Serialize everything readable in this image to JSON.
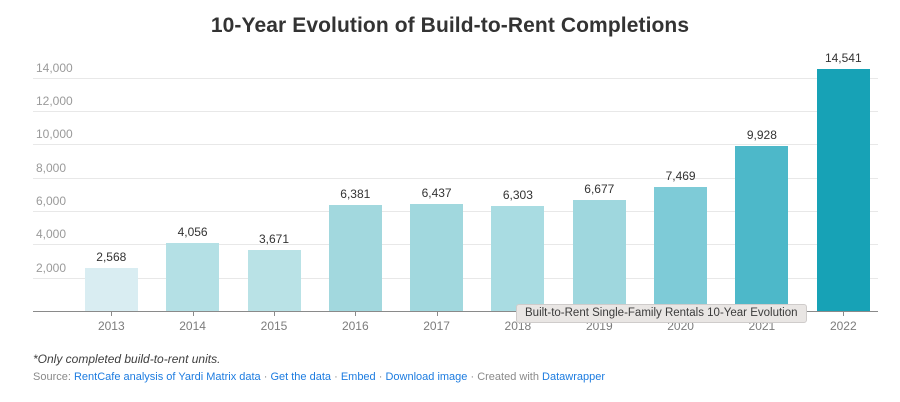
{
  "title": "10-Year Evolution of Build-to-Rent Completions",
  "chart_data": {
    "type": "bar",
    "title": "10-Year Evolution of Build-to-Rent Completions",
    "categories": [
      "2013",
      "2014",
      "2015",
      "2016",
      "2017",
      "2018",
      "2019",
      "2020",
      "2021",
      "2022"
    ],
    "values": [
      2568,
      4056,
      3671,
      6381,
      6437,
      6303,
      6677,
      7469,
      9928,
      14541
    ],
    "value_labels": [
      "2,568",
      "4,056",
      "3,671",
      "6,381",
      "6,437",
      "6,303",
      "6,677",
      "7,469",
      "9,928",
      "14,541"
    ],
    "bar_colors": [
      "#d9edf2",
      "#b4e0e5",
      "#b9e2e6",
      "#a2d8de",
      "#a1d8de",
      "#a9dce2",
      "#9fd7de",
      "#7ecbd7",
      "#4db8c9",
      "#17a2b6"
    ],
    "xlabel": "",
    "ylabel": "",
    "ylim": [
      0,
      14600
    ],
    "y_ticks": [
      {
        "value": 2000,
        "label": "2,000"
      },
      {
        "value": 4000,
        "label": "4,000"
      },
      {
        "value": 6000,
        "label": "6,000"
      },
      {
        "value": 8000,
        "label": "8,000"
      },
      {
        "value": 10000,
        "label": "10,000"
      },
      {
        "value": 12000,
        "label": "12,000"
      },
      {
        "value": 14000,
        "label": "14,000"
      }
    ],
    "grid": true,
    "legend": "none"
  },
  "tooltip": {
    "text": "Built-to-Rent Single-Family Rentals 10-Year Evolution"
  },
  "footnote": "*Only completed build-to-rent units.",
  "source": {
    "prefix": "Source:",
    "links": [
      "RentCafe analysis of Yardi Matrix data",
      "Get the data",
      "Embed",
      "Download image"
    ],
    "separator": "·",
    "created_with": "Created with",
    "creator_link": "Datawrapper"
  },
  "colors": {
    "link_blue": "#1d7ce0",
    "title_text": "#333333",
    "axis_text": "#7c7c7c",
    "ytick_text": "#9a9a9a",
    "gridline": "#e8e8e8",
    "baseline": "#8a8a8a",
    "tooltip_bg": "#e9e6e4"
  }
}
